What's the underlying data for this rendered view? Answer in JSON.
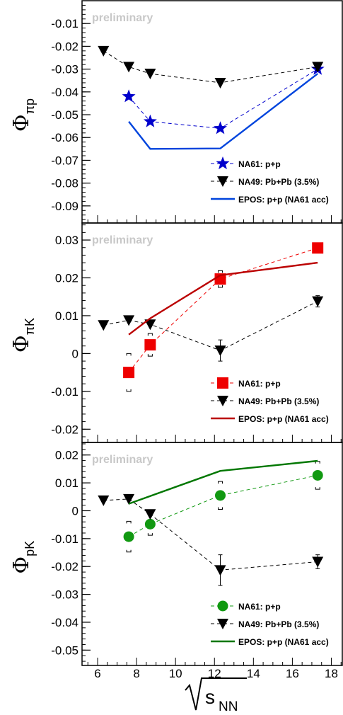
{
  "chart_data": [
    {
      "type": "line",
      "ylabel": "Φ",
      "ylabel_sub": "πp",
      "annotation": "preliminary",
      "ylim": [
        -0.0975,
        0.0
      ],
      "yticks": [
        -0.01,
        -0.02,
        -0.03,
        -0.04,
        -0.05,
        -0.06,
        -0.07,
        -0.08,
        -0.09
      ],
      "ytick_labels": [
        "-0.01",
        "-0.02",
        "-0.03",
        "-0.04",
        "-0.05",
        "-0.06",
        "-0.07",
        "-0.08",
        "-0.09"
      ],
      "legend": {
        "placement": "bottom-right"
      },
      "series": [
        {
          "name": "NA61: p+p",
          "marker": "star",
          "color": "#0000cc",
          "dashed": true,
          "x": [
            7.6,
            8.7,
            12.3,
            17.3
          ],
          "y": [
            -0.042,
            -0.053,
            -0.056,
            -0.03
          ],
          "err": [
            0.0,
            0.0,
            0.0,
            0.0
          ]
        },
        {
          "name": "NA49: Pb+Pb (3.5%)",
          "marker": "triangle-down",
          "color": "#000000",
          "dashed": true,
          "x": [
            6.3,
            7.6,
            8.7,
            12.3,
            17.3
          ],
          "y": [
            -0.022,
            -0.029,
            -0.032,
            -0.036,
            -0.029
          ],
          "err": [
            0.0,
            0.0,
            0.0,
            0.0,
            0.0015
          ]
        },
        {
          "name": "EPOS: p+p (NA61 acc)",
          "marker": "none",
          "color": "#0044dd",
          "dashed": false,
          "x": [
            7.6,
            8.7,
            12.3,
            17.3
          ],
          "y": [
            -0.053,
            -0.065,
            -0.0648,
            -0.032
          ]
        }
      ]
    },
    {
      "type": "line",
      "ylabel": "Φ",
      "ylabel_sub": "πK",
      "annotation": "preliminary",
      "ylim": [
        -0.0235,
        0.0345
      ],
      "yticks": [
        0.03,
        0.02,
        0.01,
        0.0,
        -0.01,
        -0.02
      ],
      "ytick_labels": [
        "0.03",
        "0.02",
        "0.01",
        "0",
        "-0.01",
        "-0.02"
      ],
      "legend": {
        "placement": "bottom-right"
      },
      "series": [
        {
          "name": "NA61: p+p",
          "marker": "square",
          "color": "#ee0000",
          "dashed": true,
          "x": [
            7.6,
            8.7,
            12.3,
            17.3
          ],
          "y": [
            -0.005,
            0.0023,
            0.0197,
            0.0279
          ],
          "err": [
            0.0,
            0.0,
            0.0,
            0.0
          ],
          "syst": [
            0.005,
            0.003,
            0.0022,
            0.0006
          ]
        },
        {
          "name": "NA49: Pb+Pb (3.5%)",
          "marker": "triangle-down",
          "color": "#000000",
          "dashed": true,
          "x": [
            6.3,
            7.6,
            8.7,
            12.3,
            17.3
          ],
          "y": [
            0.0075,
            0.0088,
            0.0077,
            0.0008,
            0.0138
          ],
          "err": [
            0.0,
            0.0,
            0.0,
            0.0028,
            0.0015
          ]
        },
        {
          "name": "EPOS: p+p (NA61 acc)",
          "marker": "none",
          "color": "#bb0000",
          "dashed": false,
          "x": [
            7.6,
            8.7,
            12.3,
            17.3
          ],
          "y": [
            0.005,
            0.0093,
            0.0207,
            0.024
          ]
        }
      ]
    },
    {
      "type": "line",
      "ylabel": "Φ",
      "ylabel_sub": "pK",
      "annotation": "preliminary",
      "ylim": [
        -0.0555,
        0.0245
      ],
      "yticks": [
        0.02,
        0.01,
        0.0,
        -0.01,
        -0.02,
        -0.03,
        -0.04,
        -0.05
      ],
      "ytick_labels": [
        "0.02",
        "0.01",
        "0",
        "-0.01",
        "-0.02",
        "-0.03",
        "-0.04",
        "-0.05"
      ],
      "legend": {
        "placement": "bottom-right"
      },
      "series": [
        {
          "name": "NA61: p+p",
          "marker": "circle",
          "color": "#119911",
          "dashed": true,
          "x": [
            7.6,
            8.7,
            12.3,
            17.3
          ],
          "y": [
            -0.0093,
            -0.0048,
            0.0055,
            0.0127
          ],
          "err": [
            0.0,
            0.0,
            0.0,
            0.0
          ],
          "syst": [
            0.0055,
            0.004,
            0.005,
            0.005
          ]
        },
        {
          "name": "NA49: Pb+Pb (3.5%)",
          "marker": "triangle-down",
          "color": "#000000",
          "dashed": true,
          "x": [
            6.3,
            7.6,
            8.7,
            12.3,
            17.3
          ],
          "y": [
            0.0037,
            0.0042,
            -0.0012,
            -0.0213,
            -0.0183
          ],
          "err": [
            0.0,
            0.0,
            0.0,
            0.0055,
            0.0025
          ]
        },
        {
          "name": "EPOS: p+p (NA61 acc)",
          "marker": "none",
          "color": "#007700",
          "dashed": false,
          "x": [
            7.6,
            12.3,
            17.3
          ],
          "y": [
            0.0025,
            0.0143,
            0.0179
          ]
        }
      ]
    }
  ],
  "x_axis": {
    "label": "√sNN",
    "label_radical": "√",
    "label_main": "s",
    "label_sub": "NN",
    "xlim": [
      5.2,
      18.6
    ],
    "ticks": [
      6,
      8,
      10,
      12,
      14,
      16,
      18
    ],
    "tick_labels": [
      "6",
      "8",
      "10",
      "12",
      "14",
      "16",
      "18"
    ]
  }
}
